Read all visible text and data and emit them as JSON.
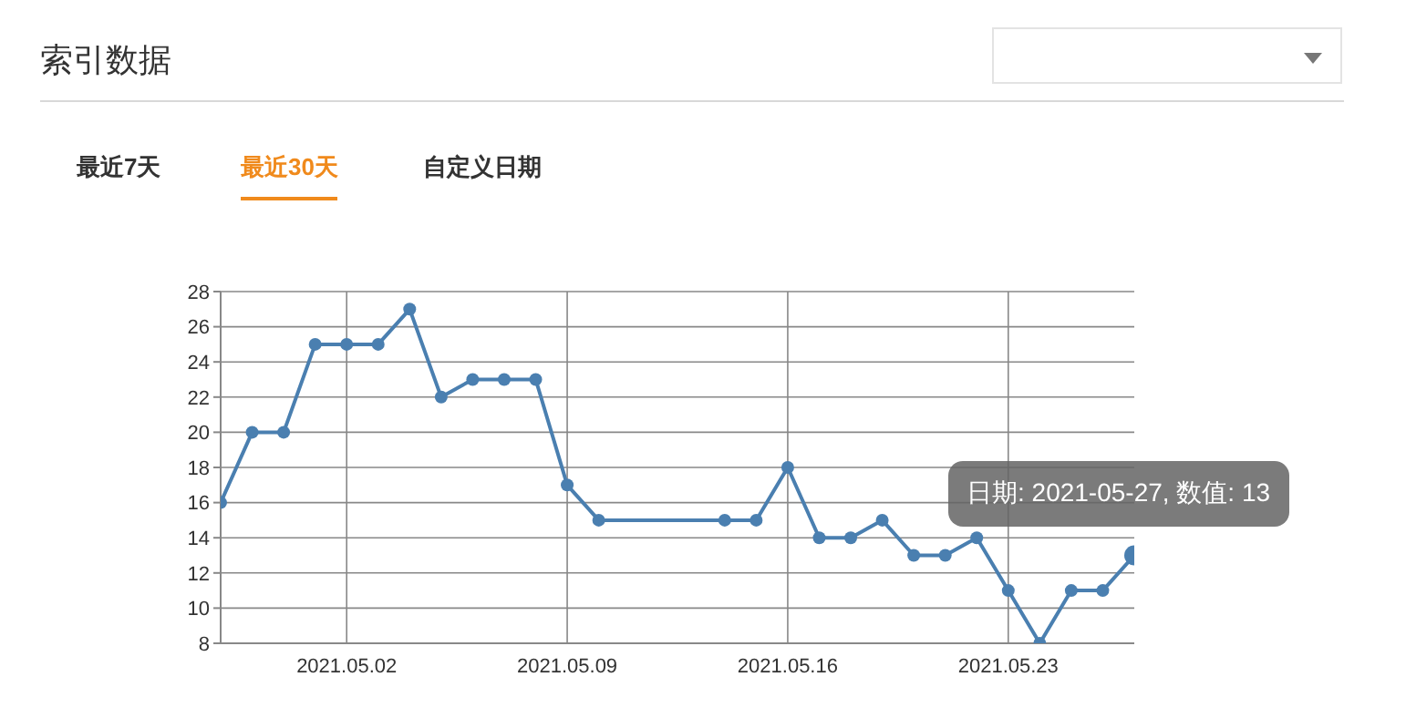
{
  "chart_data": {
    "type": "line",
    "title": "索引数据",
    "annotations": [
      "最近7天",
      "最近30天",
      "自定义日期",
      {
        "text": "日期: 2021-05-27, 数值: 13",
        "x": "2021-05-27",
        "y": 13
      }
    ],
    "x": [
      "2021-04-28",
      "2021-04-29",
      "2021-04-30",
      "2021-05-01",
      "2021-05-02",
      "2021-05-03",
      "2021-05-04",
      "2021-05-05",
      "2021-05-06",
      "2021-05-07",
      "2021-05-08",
      "2021-05-09",
      "2021-05-10",
      "2021-05-14",
      "2021-05-15",
      "2021-05-16",
      "2021-05-17",
      "2021-05-18",
      "2021-05-19",
      "2021-05-20",
      "2021-05-21",
      "2021-05-22",
      "2021-05-23",
      "2021-05-24",
      "2021-05-25",
      "2021-05-26",
      "2021-05-27"
    ],
    "series": [
      {
        "color": "#4a7fb0",
        "values": [
          16,
          20,
          20,
          25,
          25,
          25,
          27,
          22,
          23,
          23,
          23,
          17,
          15,
          15,
          15,
          18,
          14,
          14,
          15,
          13,
          13,
          14,
          11,
          8,
          11,
          11,
          13
        ]
      }
    ],
    "xlim": [
      "2021-04-28",
      "2021-05-27"
    ],
    "xticks": [
      {
        "value": "2021-05-02",
        "label": "2021.05.02"
      },
      {
        "value": "2021-05-09",
        "label": "2021.05.09"
      },
      {
        "value": "2021-05-16",
        "label": "2021.05.16"
      },
      {
        "value": "2021-05-23",
        "label": "2021.05.23"
      }
    ],
    "ylim": [
      8,
      28
    ],
    "yticks": [
      8,
      10,
      12,
      14,
      16,
      18,
      20,
      22,
      24,
      26,
      28
    ],
    "grid": true,
    "marker": "circle",
    "line_style": "solid",
    "legend": false
  }
}
